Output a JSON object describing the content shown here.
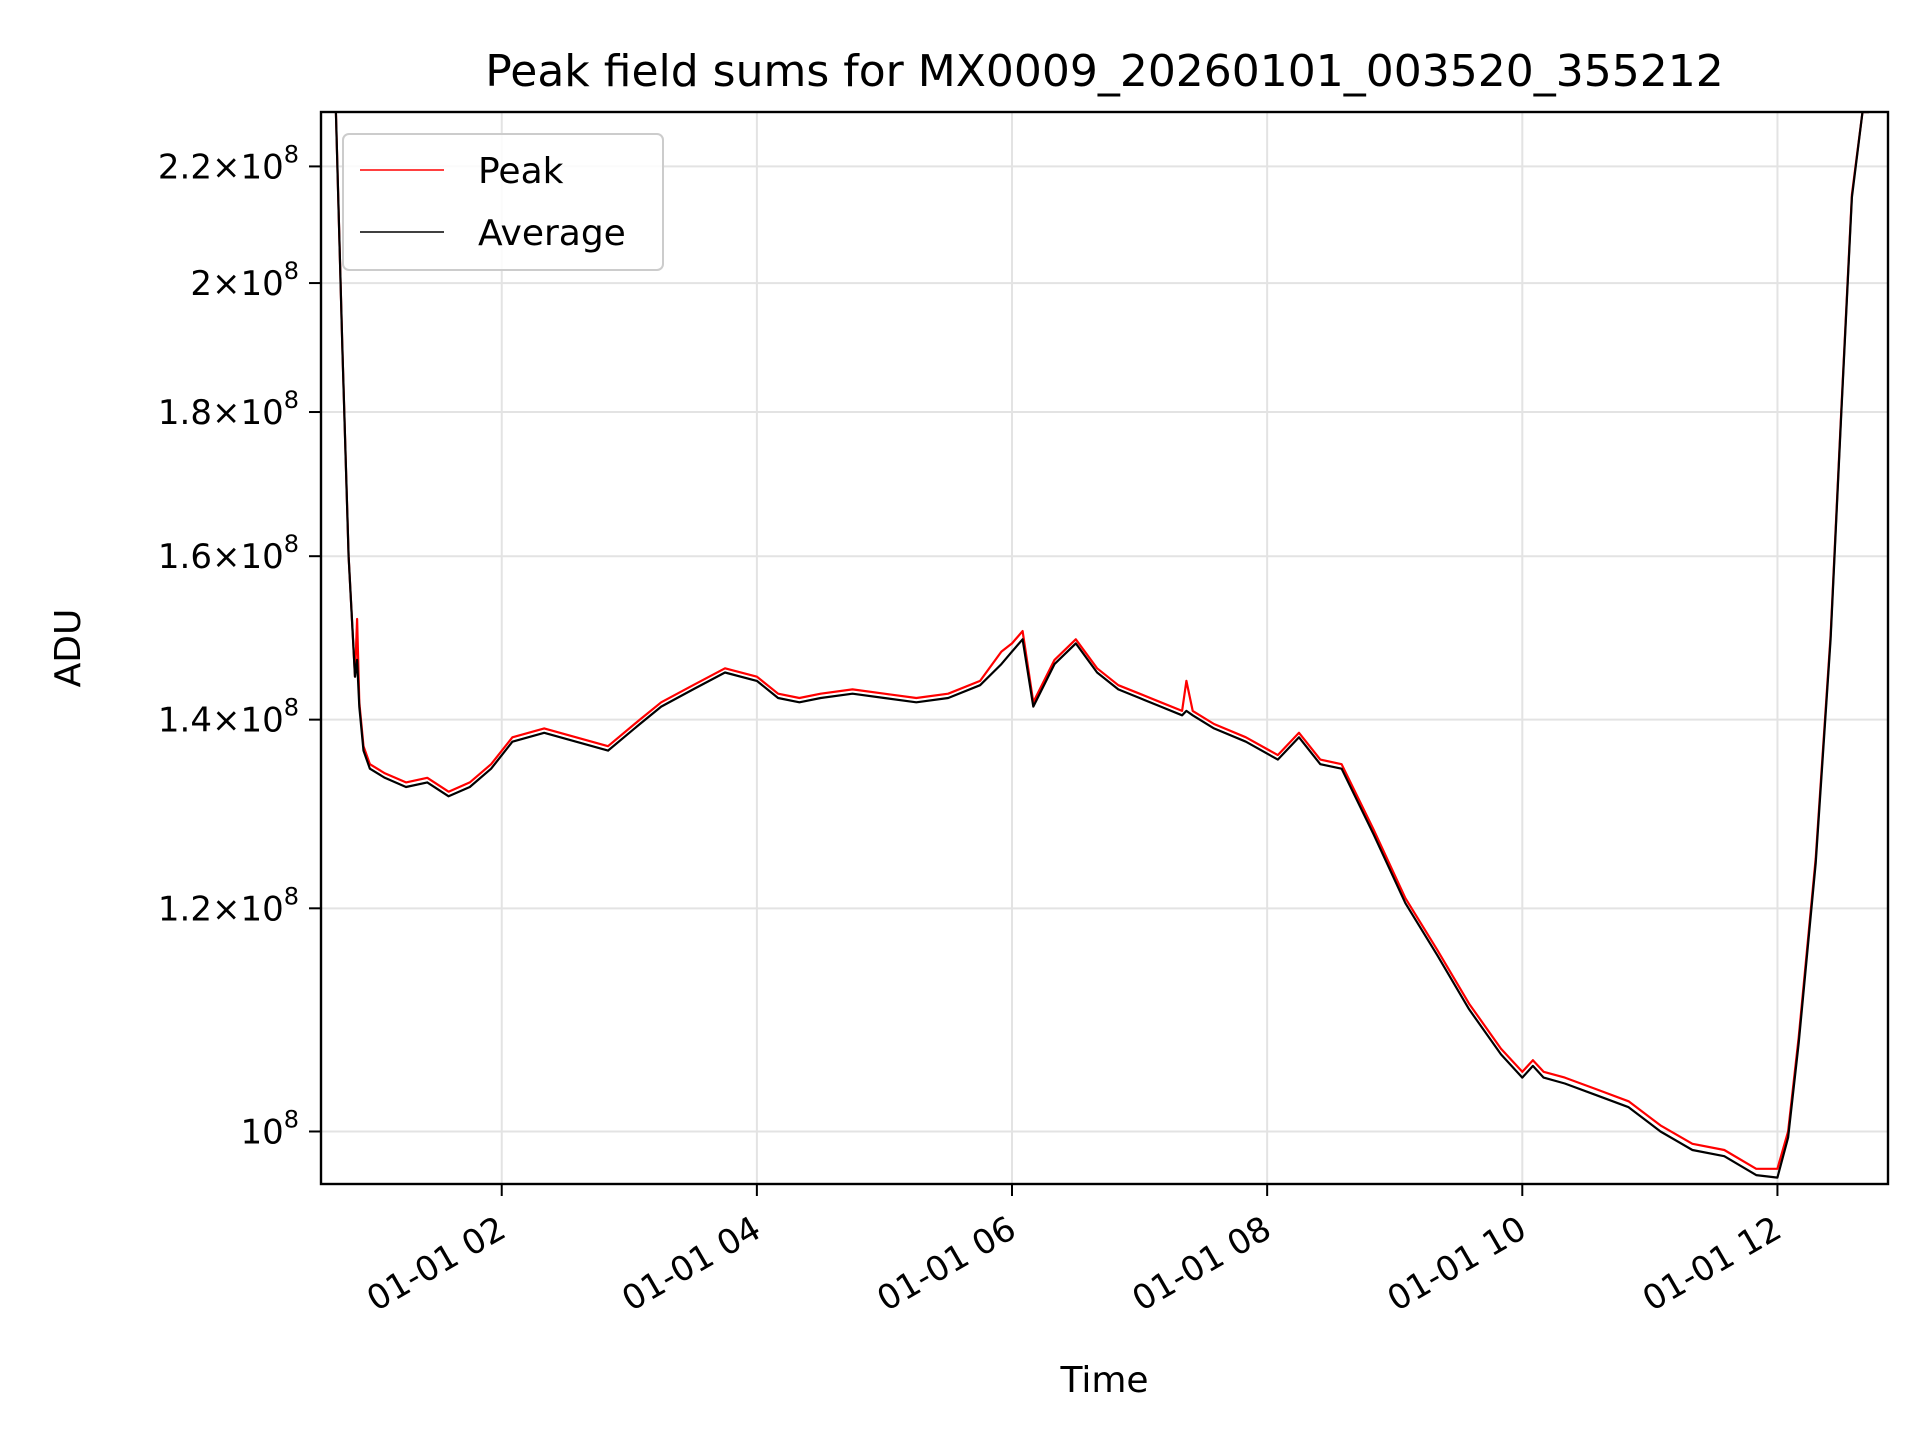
{
  "chart_data": {
    "type": "line",
    "title": "Peak field sums for MX0009_20260101_003520_355212",
    "xlabel": "Time",
    "ylabel": "ADU",
    "x_scale": "time",
    "y_scale": "log",
    "xlim": [
      "2026-01-01 00:35",
      "2026-01-01 12:52"
    ],
    "ylim": [
      95800000,
      230000000
    ],
    "grid": true,
    "legend_position": "top-left",
    "x_ticks": [
      {
        "value": "2026-01-01 02:00",
        "label": "01-01 02"
      },
      {
        "value": "2026-01-01 04:00",
        "label": "01-01 04"
      },
      {
        "value": "2026-01-01 06:00",
        "label": "01-01 06"
      },
      {
        "value": "2026-01-01 08:00",
        "label": "01-01 08"
      },
      {
        "value": "2026-01-01 10:00",
        "label": "01-01 10"
      },
      {
        "value": "2026-01-01 12:00",
        "label": "01-01 12"
      }
    ],
    "y_ticks": [
      {
        "value": 100000000,
        "mantissa": "",
        "exponent": "8"
      },
      {
        "value": 120000000,
        "mantissa": "1.2",
        "exponent": "8"
      },
      {
        "value": 140000000,
        "mantissa": "1.4",
        "exponent": "8"
      },
      {
        "value": 160000000,
        "mantissa": "1.6",
        "exponent": "8"
      },
      {
        "value": 180000000,
        "mantissa": "1.8",
        "exponent": "8"
      },
      {
        "value": 200000000,
        "mantissa": "2",
        "exponent": "8"
      },
      {
        "value": 220000000,
        "mantissa": "2.2",
        "exponent": "8"
      }
    ],
    "series": [
      {
        "name": "Peak",
        "color": "#ff0000",
        "x": [
          "00:42",
          "00:45",
          "00:48",
          "00:51",
          "00:52",
          "00:53",
          "00:55",
          "00:58",
          "01:05",
          "01:15",
          "01:25",
          "01:35",
          "01:45",
          "01:55",
          "02:05",
          "02:20",
          "02:35",
          "02:50",
          "03:05",
          "03:15",
          "03:30",
          "03:45",
          "04:00",
          "04:10",
          "04:20",
          "04:30",
          "04:45",
          "05:00",
          "05:15",
          "05:30",
          "05:45",
          "05:55",
          "06:00",
          "06:05",
          "06:10",
          "06:20",
          "06:30",
          "06:40",
          "06:50",
          "07:00",
          "07:10",
          "07:20",
          "07:22",
          "07:25",
          "07:35",
          "07:50",
          "08:05",
          "08:15",
          "08:25",
          "08:35",
          "08:50",
          "09:05",
          "09:20",
          "09:35",
          "09:50",
          "10:00",
          "10:05",
          "10:10",
          "10:20",
          "10:35",
          "10:50",
          "11:05",
          "11:20",
          "11:35",
          "11:50",
          "12:00",
          "12:05",
          "12:10",
          "12:18",
          "12:25",
          "12:30",
          "12:35",
          "12:40",
          "12:43"
        ],
        "values": [
          230000000,
          190000000,
          160000000,
          145000000,
          152000000,
          142000000,
          137000000,
          135000000,
          134000000,
          133000000,
          133500000,
          132000000,
          133000000,
          135000000,
          138000000,
          139000000,
          138000000,
          137000000,
          140000000,
          142000000,
          144000000,
          146000000,
          145000000,
          143000000,
          142500000,
          143000000,
          143500000,
          143000000,
          142500000,
          143000000,
          144500000,
          148000000,
          149000000,
          150500000,
          142000000,
          147000000,
          149500000,
          146000000,
          144000000,
          143000000,
          142000000,
          141000000,
          144500000,
          141000000,
          139500000,
          138000000,
          136000000,
          138500000,
          135500000,
          135000000,
          128000000,
          121000000,
          116000000,
          111000000,
          107000000,
          105000000,
          106000000,
          105000000,
          104500000,
          103500000,
          102500000,
          100500000,
          99000000,
          98500000,
          97000000,
          97000000,
          100000000,
          108000000,
          125000000,
          150000000,
          180000000,
          215000000,
          230000000,
          230000000
        ]
      },
      {
        "name": "Average",
        "color": "#000000",
        "x": [
          "00:42",
          "00:45",
          "00:48",
          "00:51",
          "00:52",
          "00:53",
          "00:55",
          "00:58",
          "01:05",
          "01:15",
          "01:25",
          "01:35",
          "01:45",
          "01:55",
          "02:05",
          "02:20",
          "02:35",
          "02:50",
          "03:05",
          "03:15",
          "03:30",
          "03:45",
          "04:00",
          "04:10",
          "04:20",
          "04:30",
          "04:45",
          "05:00",
          "05:15",
          "05:30",
          "05:45",
          "05:55",
          "06:00",
          "06:05",
          "06:10",
          "06:20",
          "06:30",
          "06:40",
          "06:50",
          "07:00",
          "07:10",
          "07:20",
          "07:22",
          "07:25",
          "07:35",
          "07:50",
          "08:05",
          "08:15",
          "08:25",
          "08:35",
          "08:50",
          "09:05",
          "09:20",
          "09:35",
          "09:50",
          "10:00",
          "10:05",
          "10:10",
          "10:20",
          "10:35",
          "10:50",
          "11:05",
          "11:20",
          "11:35",
          "11:50",
          "12:00",
          "12:05",
          "12:10",
          "12:18",
          "12:25",
          "12:30",
          "12:35",
          "12:40",
          "12:43"
        ],
        "values": [
          230000000,
          190000000,
          160000000,
          145000000,
          147000000,
          141500000,
          136500000,
          134500000,
          133500000,
          132500000,
          133000000,
          131500000,
          132500000,
          134500000,
          137500000,
          138500000,
          137500000,
          136500000,
          139500000,
          141500000,
          143500000,
          145500000,
          144500000,
          142500000,
          142000000,
          142500000,
          143000000,
          142500000,
          142000000,
          142500000,
          144000000,
          146500000,
          148000000,
          149500000,
          141500000,
          146500000,
          149000000,
          145500000,
          143500000,
          142500000,
          141500000,
          140500000,
          141000000,
          140500000,
          139000000,
          137500000,
          135500000,
          138000000,
          135000000,
          134500000,
          127500000,
          120500000,
          115500000,
          110500000,
          106500000,
          104500000,
          105500000,
          104500000,
          104000000,
          103000000,
          102000000,
          100000000,
          98500000,
          98000000,
          96500000,
          96300000,
          99500000,
          107500000,
          124500000,
          149500000,
          179500000,
          214500000,
          230000000,
          230000000
        ]
      }
    ]
  }
}
